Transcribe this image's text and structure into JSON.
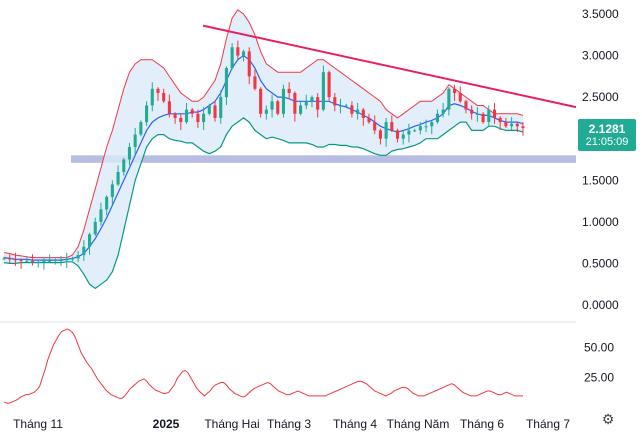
{
  "chart_data": [
    {
      "type": "candlestick",
      "overlays": [
        "bollinger-bands",
        "descending-trendline",
        "horizontal-support-zone"
      ],
      "y_axis": {
        "ticks": [
          "3.5000",
          "3.0000",
          "2.5000",
          "2.0000",
          "1.5000",
          "1.0000",
          "0.5000",
          "0.0000"
        ],
        "ylim": [
          0,
          3.5
        ]
      },
      "x_axis": {
        "ticks": [
          "Tháng 11",
          "2025",
          "Tháng Hai",
          "Tháng 3",
          "Tháng 4",
          "Tháng Năm",
          "Tháng 6",
          "Tháng 7"
        ]
      },
      "price_label": {
        "value": "2.1281",
        "countdown": "21:05:09"
      },
      "support_zone": {
        "low": 1.71,
        "high": 1.8
      },
      "trendline": {
        "start": 3.36,
        "end": 2.38
      },
      "close_series": [
        0.56,
        0.55,
        0.54,
        0.53,
        0.53,
        0.52,
        0.52,
        0.53,
        0.53,
        0.54,
        0.54,
        0.55,
        0.56,
        0.6,
        0.7,
        0.85,
        1.0,
        1.15,
        1.3,
        1.45,
        1.6,
        1.75,
        1.9,
        2.05,
        2.2,
        2.4,
        2.6,
        2.55,
        2.45,
        2.3,
        2.25,
        2.2,
        2.35,
        2.3,
        2.2,
        2.3,
        2.4,
        2.25,
        2.5,
        2.85,
        3.1,
        3.0,
        3.05,
        2.75,
        2.6,
        2.3,
        2.35,
        2.45,
        2.3,
        2.6,
        2.55,
        2.3,
        2.4,
        2.45,
        2.5,
        2.35,
        2.8,
        2.5,
        2.4,
        2.4,
        2.4,
        2.3,
        2.35,
        2.25,
        2.2,
        2.1,
        2.0,
        2.2,
        2.1,
        2.0,
        2.05,
        2.1,
        2.1,
        2.15,
        2.15,
        2.2,
        2.3,
        2.35,
        2.6,
        2.55,
        2.45,
        2.35,
        2.3,
        2.3,
        2.2,
        2.35,
        2.25,
        2.2,
        2.15,
        2.18,
        2.15,
        2.13
      ],
      "bollinger": {
        "upper": [
          0.63,
          0.62,
          0.6,
          0.59,
          0.58,
          0.57,
          0.57,
          0.57,
          0.57,
          0.57,
          0.57,
          0.57,
          0.6,
          0.7,
          0.9,
          1.15,
          1.4,
          1.65,
          1.9,
          2.1,
          2.35,
          2.6,
          2.8,
          2.9,
          2.95,
          2.95,
          2.95,
          2.9,
          2.85,
          2.75,
          2.65,
          2.55,
          2.5,
          2.45,
          2.45,
          2.5,
          2.6,
          2.7,
          2.9,
          3.2,
          3.45,
          3.55,
          3.5,
          3.4,
          3.25,
          3.05,
          2.9,
          2.85,
          2.8,
          2.8,
          2.8,
          2.8,
          2.8,
          2.85,
          2.9,
          2.95,
          2.95,
          2.9,
          2.85,
          2.8,
          2.75,
          2.7,
          2.65,
          2.6,
          2.55,
          2.5,
          2.45,
          2.35,
          2.3,
          2.25,
          2.3,
          2.35,
          2.4,
          2.45,
          2.45,
          2.45,
          2.5,
          2.55,
          2.65,
          2.6,
          2.55,
          2.5,
          2.45,
          2.4,
          2.4,
          2.35,
          2.3,
          2.3,
          2.3,
          2.3,
          2.3,
          2.28
        ],
        "middle": [
          0.57,
          0.56,
          0.55,
          0.55,
          0.55,
          0.54,
          0.54,
          0.54,
          0.54,
          0.54,
          0.54,
          0.55,
          0.56,
          0.58,
          0.62,
          0.7,
          0.8,
          0.92,
          1.05,
          1.2,
          1.35,
          1.5,
          1.65,
          1.8,
          1.95,
          2.1,
          2.2,
          2.25,
          2.28,
          2.3,
          2.3,
          2.3,
          2.3,
          2.32,
          2.32,
          2.35,
          2.4,
          2.45,
          2.55,
          2.7,
          2.85,
          2.95,
          3.0,
          2.95,
          2.85,
          2.7,
          2.6,
          2.55,
          2.5,
          2.5,
          2.48,
          2.45,
          2.45,
          2.45,
          2.45,
          2.45,
          2.45,
          2.45,
          2.42,
          2.4,
          2.38,
          2.35,
          2.32,
          2.28,
          2.25,
          2.2,
          2.15,
          2.12,
          2.1,
          2.08,
          2.1,
          2.12,
          2.15,
          2.17,
          2.2,
          2.22,
          2.25,
          2.3,
          2.4,
          2.42,
          2.4,
          2.37,
          2.33,
          2.3,
          2.28,
          2.28,
          2.25,
          2.22,
          2.2,
          2.2,
          2.2,
          2.18
        ],
        "lower": [
          0.51,
          0.5,
          0.5,
          0.51,
          0.51,
          0.51,
          0.51,
          0.51,
          0.51,
          0.51,
          0.51,
          0.52,
          0.52,
          0.47,
          0.37,
          0.25,
          0.2,
          0.25,
          0.3,
          0.4,
          0.6,
          0.9,
          1.2,
          1.5,
          1.7,
          1.9,
          2.0,
          2.05,
          2.05,
          2.0,
          1.98,
          1.97,
          1.95,
          1.95,
          1.9,
          1.85,
          1.82,
          1.85,
          1.9,
          2.05,
          2.15,
          2.2,
          2.25,
          2.2,
          2.1,
          2.05,
          2.0,
          2.02,
          2.0,
          1.98,
          1.95,
          1.95,
          1.95,
          1.95,
          1.93,
          1.9,
          1.9,
          1.93,
          1.93,
          1.92,
          1.92,
          1.9,
          1.9,
          1.88,
          1.85,
          1.82,
          1.8,
          1.8,
          1.85,
          1.87,
          1.88,
          1.9,
          1.92,
          1.95,
          2.0,
          2.0,
          2.0,
          2.05,
          2.1,
          2.15,
          2.2,
          2.2,
          2.1,
          2.1,
          2.1,
          2.15,
          2.15,
          2.12,
          2.1,
          2.1,
          2.1,
          2.08
        ]
      },
      "colors": {
        "up": "#22ab94",
        "down": "#f23645",
        "band_upper": "#f23645",
        "band_middle": "#2962ff",
        "band_lower": "#089981",
        "band_fill": "#dbeaf8",
        "trendline": "#e91e63",
        "zone": "#9fa8da"
      }
    },
    {
      "type": "line",
      "panel": "oscillator",
      "y_axis": {
        "ticks": [
          "50.00",
          "25.00"
        ],
        "ylim": [
          0,
          70
        ]
      },
      "values": [
        5,
        4,
        4,
        5,
        6,
        7,
        9,
        10,
        11,
        11,
        12,
        13,
        15,
        18,
        25,
        32,
        40,
        46,
        52,
        56,
        60,
        63,
        64,
        65,
        64,
        62,
        58,
        52,
        46,
        42,
        38,
        35,
        32,
        28,
        24,
        21,
        18,
        15,
        13,
        11,
        10,
        9,
        8,
        8,
        10,
        13,
        16,
        18,
        20,
        22,
        23,
        24,
        22,
        19,
        17,
        15,
        14,
        13,
        12,
        12,
        13,
        16,
        19,
        24,
        27,
        30,
        31,
        29,
        25,
        21,
        17,
        14,
        12,
        10,
        12,
        14,
        17,
        19,
        20,
        21,
        21,
        19,
        16,
        14,
        12,
        11,
        10,
        9,
        10,
        12,
        14,
        16,
        17,
        18,
        19,
        20,
        21,
        20,
        18,
        16,
        14,
        13,
        12,
        11,
        11,
        12,
        13,
        14,
        13,
        12,
        11,
        10,
        10,
        10,
        10,
        10,
        10,
        10,
        11,
        12,
        13,
        14,
        15,
        16,
        17,
        18,
        19,
        20,
        21,
        22,
        22,
        21,
        20,
        18,
        16,
        14,
        13,
        12,
        11,
        10,
        11,
        12,
        14,
        15,
        16,
        17,
        17,
        16,
        14,
        12,
        11,
        10,
        10,
        10,
        11,
        12,
        13,
        14,
        15,
        16,
        17,
        18,
        19,
        20,
        19,
        17,
        15,
        13,
        12,
        11,
        10,
        10,
        10,
        11,
        12,
        13,
        14,
        14,
        13,
        12,
        11,
        11,
        12,
        13,
        12,
        11,
        10,
        10,
        10,
        10
      ],
      "color": "#f23645"
    }
  ],
  "toolbar": {
    "settings_icon": "gear-icon"
  }
}
